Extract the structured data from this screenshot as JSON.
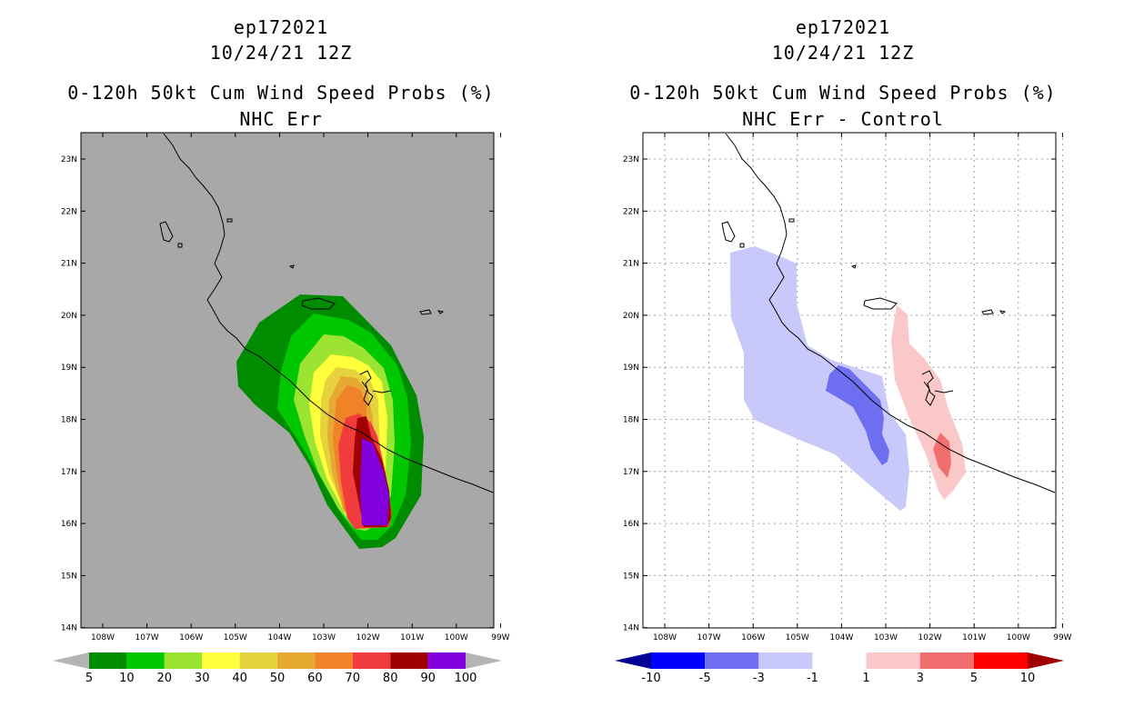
{
  "left": {
    "title_line1": "ep172021",
    "title_line2": "10/24/21 12Z",
    "title_line3": "0-120h 50kt Cum Wind Speed Probs (%)",
    "title_line4": "NHC Err",
    "lat_labels": [
      "23N",
      "22N",
      "21N",
      "20N",
      "19N",
      "18N",
      "17N",
      "16N",
      "15N",
      "14N"
    ],
    "lon_labels": [
      "108W",
      "107W",
      "106W",
      "105W",
      "104W",
      "103W",
      "102W",
      "101W",
      "100W",
      "99W"
    ],
    "colorbar": {
      "labels": [
        "5",
        "10",
        "20",
        "30",
        "40",
        "50",
        "60",
        "70",
        "80",
        "90",
        "100"
      ],
      "colors": [
        "#b4b4b4",
        "#008c00",
        "#00c800",
        "#9be532",
        "#ffff3c",
        "#e6d23c",
        "#e6aa32",
        "#f08228",
        "#f03c3c",
        "#a00000",
        "#8200dc",
        "#b4b4b4"
      ]
    }
  },
  "right": {
    "title_line1": "ep172021",
    "title_line2": "10/24/21 12Z",
    "title_line3": "0-120h 50kt Cum Wind Speed Probs (%)",
    "title_line4": "NHC Err - Control",
    "lat_labels": [
      "23N",
      "22N",
      "21N",
      "20N",
      "19N",
      "18N",
      "17N",
      "16N",
      "15N",
      "14N"
    ],
    "lon_labels": [
      "108W",
      "107W",
      "106W",
      "105W",
      "104W",
      "103W",
      "102W",
      "101W",
      "100W",
      "99W"
    ],
    "colorbar": {
      "labels": [
        "-10",
        "-5",
        "-3",
        "-1",
        "1",
        "3",
        "5",
        "10"
      ],
      "colors": [
        "#000096",
        "#0000ff",
        "#6e6ef0",
        "#c8c8fa",
        "#ffffff",
        "#fac8c8",
        "#f06e6e",
        "#ff0000",
        "#a00000"
      ]
    }
  }
}
